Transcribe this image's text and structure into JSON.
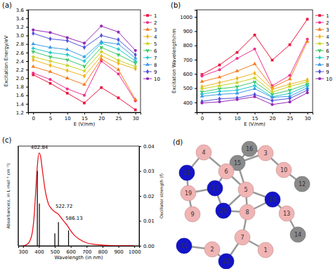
{
  "chart_data": [
    {
      "type": "line",
      "title": "(a)",
      "x_label": "E (V/nm)",
      "y_label": "Excitation Energy/eV",
      "x": [
        0,
        5,
        10,
        15,
        20,
        25,
        30
      ],
      "xlim": [
        -1.5,
        31.5
      ],
      "xticks": [
        0,
        5,
        10,
        15,
        20,
        25,
        30
      ],
      "ylim": [
        1.2,
        3.6
      ],
      "yticks": [
        1.2,
        1.4,
        1.6,
        1.8,
        {
          "value": 2,
          "label": "2.0"
        },
        2.2,
        2.4,
        2.6,
        2.8,
        {
          "value": 3,
          "label": "3.0"
        },
        3.2,
        3.4,
        3.6
      ],
      "legend": "right",
      "series": [
        {
          "name": "1",
          "color": "#e8143c",
          "marker": "square",
          "values": [
            2.08,
            1.88,
            1.65,
            1.42,
            1.78,
            1.54,
            1.26
          ]
        },
        {
          "name": "2",
          "color": "#f0308c",
          "marker": "circle",
          "values": [
            2.12,
            1.97,
            1.75,
            1.6,
            2.4,
            2.1,
            1.47
          ]
        },
        {
          "name": "3",
          "color": "#f57c20",
          "marker": "triangle",
          "values": [
            2.27,
            2.15,
            2.0,
            1.85,
            2.45,
            2.2,
            1.5
          ]
        },
        {
          "name": "4",
          "color": "#f0b41e",
          "marker": "diamond",
          "values": [
            2.43,
            2.3,
            2.18,
            2.05,
            2.52,
            2.35,
            2.22
          ]
        },
        {
          "name": "5",
          "color": "#c8d21e",
          "marker": "star",
          "values": [
            2.5,
            2.4,
            2.3,
            2.17,
            2.62,
            2.42,
            2.27
          ]
        },
        {
          "name": "6",
          "color": "#3cc864",
          "marker": "wye",
          "values": [
            2.62,
            2.5,
            2.43,
            2.28,
            2.72,
            2.55,
            2.35
          ]
        },
        {
          "name": "7",
          "color": "#1ec8c8",
          "marker": "cross",
          "values": [
            2.7,
            2.6,
            2.55,
            2.4,
            2.82,
            2.68,
            2.4
          ]
        },
        {
          "name": "8",
          "color": "#3c9be6",
          "marker": "triangle",
          "values": [
            2.8,
            2.72,
            2.67,
            2.5,
            2.85,
            2.8,
            2.47
          ]
        },
        {
          "name": "9",
          "color": "#5050dc",
          "marker": "diamond",
          "values": [
            3.05,
            2.92,
            2.88,
            2.72,
            3.0,
            2.9,
            2.55
          ]
        },
        {
          "name": "10",
          "color": "#9628b4",
          "marker": "circle",
          "values": [
            3.13,
            3.07,
            2.95,
            2.82,
            3.22,
            3.08,
            2.65
          ]
        }
      ]
    },
    {
      "type": "line",
      "title": "(b)",
      "x_label": "E (V/nm)",
      "y_label": "Excitation Wavelength/nm",
      "x": [
        0,
        5,
        10,
        15,
        20,
        25,
        30
      ],
      "xlim": [
        -1.5,
        31.5
      ],
      "xticks": [
        0,
        5,
        10,
        15,
        20,
        25,
        30
      ],
      "ylim": [
        330,
        1050
      ],
      "yticks": [
        400,
        500,
        600,
        700,
        800,
        900,
        1000
      ],
      "legend": "right",
      "series": [
        {
          "name": "1",
          "color": "#e8143c",
          "marker": "square",
          "values": [
            596,
            663,
            751,
            873,
            697,
            805,
            984
          ]
        },
        {
          "name": "2",
          "color": "#f0308c",
          "marker": "circle",
          "values": [
            585,
            629,
            709,
            775,
            517,
            590,
            844
          ]
        },
        {
          "name": "3",
          "color": "#f57c20",
          "marker": "triangle",
          "values": [
            546,
            577,
            620,
            670,
            506,
            564,
            827
          ]
        },
        {
          "name": "4",
          "color": "#f0b41e",
          "marker": "diamond",
          "values": [
            510,
            539,
            569,
            605,
            492,
            528,
            559
          ]
        },
        {
          "name": "5",
          "color": "#c8d21e",
          "marker": "star",
          "values": [
            496,
            517,
            539,
            571,
            473,
            512,
            546
          ]
        },
        {
          "name": "6",
          "color": "#3cc864",
          "marker": "wye",
          "values": [
            473,
            496,
            510,
            544,
            456,
            486,
            528
          ]
        },
        {
          "name": "7",
          "color": "#1ec8c8",
          "marker": "cross",
          "values": [
            459,
            477,
            486,
            517,
            440,
            463,
            517
          ]
        },
        {
          "name": "8",
          "color": "#3c9be6",
          "marker": "triangle",
          "values": [
            443,
            456,
            464,
            496,
            435,
            443,
            502
          ]
        },
        {
          "name": "9",
          "color": "#5050dc",
          "marker": "diamond",
          "values": [
            407,
            425,
            431,
            456,
            413,
            428,
            486
          ]
        },
        {
          "name": "10",
          "color": "#9628b4",
          "marker": "circle",
          "values": [
            396,
            404,
            420,
            440,
            385,
            403,
            468
          ]
        }
      ]
    },
    {
      "type": "line",
      "title": "(c)",
      "x_label": "Wavelength (in nm)",
      "y_label": "Absorbance(ε, in L mol⁻¹ cm⁻¹)",
      "y2_label": "Oscillator strength (f)",
      "xlim": [
        270,
        1030
      ],
      "xticks": [
        300,
        400,
        500,
        600,
        700,
        800,
        900,
        1000
      ],
      "ylim": [
        0,
        1
      ],
      "y2lim": [
        0,
        0.04
      ],
      "y2ticks": [
        {
          "value": 0,
          "label": "0.00"
        },
        {
          "value": 0.01,
          "label": "0.01"
        },
        {
          "value": 0.02,
          "label": "0.02"
        },
        {
          "value": 0.03,
          "label": "0.03"
        },
        {
          "value": 0.04,
          "label": "0.04"
        }
      ],
      "series": [
        {
          "type": "line",
          "color": "#e8141c",
          "x": [
            300,
            320,
            340,
            360,
            370,
            380,
            390,
            400,
            410,
            420,
            440,
            460,
            480,
            500,
            520,
            540,
            560,
            580,
            600,
            620,
            650,
            700,
            750,
            800,
            850,
            900,
            1000
          ],
          "values": [
            0.0,
            0.01,
            0.04,
            0.15,
            0.3,
            0.55,
            0.8,
            0.93,
            0.9,
            0.78,
            0.55,
            0.42,
            0.37,
            0.34,
            0.32,
            0.28,
            0.24,
            0.2,
            0.15,
            0.11,
            0.07,
            0.03,
            0.015,
            0.007,
            0.003,
            0.001,
            0.0
          ]
        },
        {
          "type": "bar",
          "axis": "y2",
          "color": "#000000",
          "x": [
            390,
            402.84,
            500,
            522.72,
            586.13
          ],
          "values": [
            0.03,
            0.017,
            0.005,
            0.0095,
            0.0062
          ]
        }
      ],
      "annotations": [
        {
          "text": "402.84",
          "x": 402.84,
          "y": 0.95
        },
        {
          "text": "522.72",
          "x": 522.72,
          "y": 0.36
        },
        {
          "text": "586.13",
          "x": 586.13,
          "y": 0.24
        }
      ]
    }
  ],
  "diagram": {
    "title": "(d)",
    "nodes": [
      {
        "label": "16",
        "color": "#8a8a8a"
      },
      {
        "label": "15",
        "color": "#8a8a8a"
      },
      {
        "label": "4",
        "color": "#f0b4b4"
      },
      {
        "label": "3",
        "color": "#f0b4b4"
      },
      {
        "label": "21",
        "color": "#1414c8"
      },
      {
        "label": "6",
        "color": "#f0b4b4"
      },
      {
        "label": "10",
        "color": "#f0b4b4"
      },
      {
        "label": "5",
        "color": "#f0b4b4"
      },
      {
        "label": "19",
        "color": "#f0b4b4"
      },
      {
        "label": "17",
        "color": "#1414c8"
      },
      {
        "label": "12",
        "color": "#8a8a8a"
      },
      {
        "label": "9",
        "color": "#f0b4b4"
      },
      {
        "label": "20",
        "color": "#1414c8"
      },
      {
        "label": "8",
        "color": "#f0b4b4"
      },
      {
        "label": "18",
        "color": "#1414c8"
      },
      {
        "label": "13",
        "color": "#f0b4b4"
      },
      {
        "label": "14",
        "color": "#8a8a8a"
      },
      {
        "label": "7",
        "color": "#f0b4b4"
      },
      {
        "label": "11",
        "color": "#1414c8"
      },
      {
        "label": "2",
        "color": "#f0b4b4"
      },
      {
        "label": "1",
        "color": "#f0b4b4"
      },
      {
        "label": "22",
        "color": "#1414c8"
      }
    ]
  }
}
